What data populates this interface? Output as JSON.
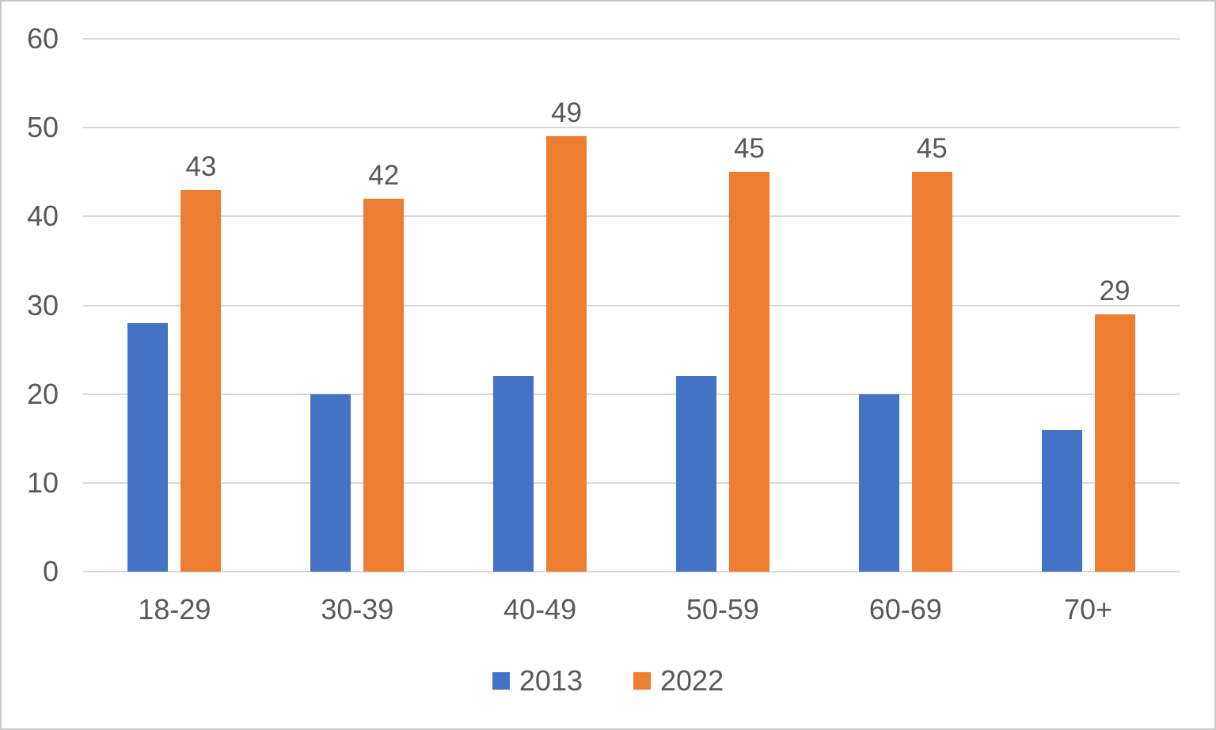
{
  "chart_data": {
    "type": "bar",
    "title": "",
    "categories": [
      "18-29",
      "30-39",
      "40-49",
      "50-59",
      "60-69",
      "70+"
    ],
    "series": [
      {
        "name": "2013",
        "color": "#4472C4",
        "values": [
          28,
          20,
          22,
          22,
          20,
          16
        ],
        "show_labels": false
      },
      {
        "name": "2022",
        "color": "#ED7D31",
        "values": [
          43,
          42,
          49,
          45,
          45,
          29
        ],
        "show_labels": true
      }
    ],
    "data_labels_2022": [
      "43",
      "42",
      "49",
      "45",
      "45",
      "29"
    ],
    "ylabel": "",
    "xlabel": "",
    "ylim": [
      0,
      60
    ],
    "yticks": [
      0,
      10,
      20,
      30,
      40,
      50,
      60
    ],
    "grid": "horizontal",
    "legend_position": "bottom",
    "colors": {
      "grid": "#d9d9d9",
      "text": "#595959",
      "background": "#ffffff",
      "border": "#c8c8c8"
    }
  }
}
